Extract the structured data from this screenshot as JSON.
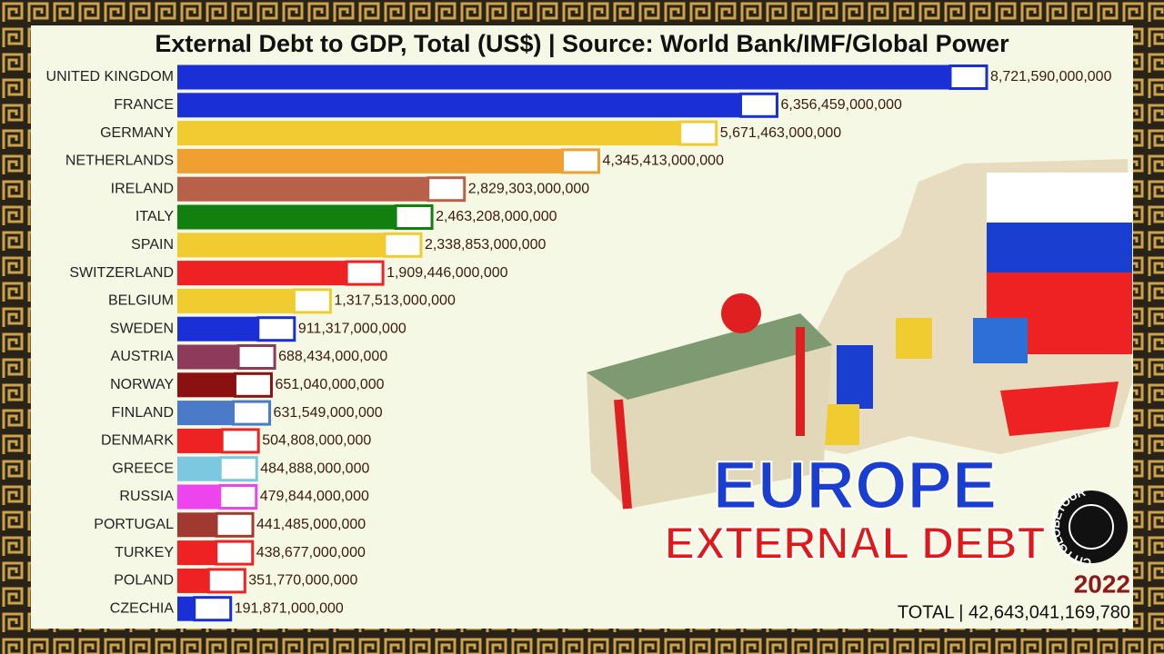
{
  "chart_data": {
    "type": "hbar",
    "title": "External Debt to GDP, Total (US$) | Source: World Bank/IMF/Global Power",
    "categories": [
      "UNITED KINGDOM",
      "FRANCE",
      "GERMANY",
      "NETHERLANDS",
      "IRELAND",
      "ITALY",
      "SPAIN",
      "SWITZERLAND",
      "BELGIUM",
      "SWEDEN",
      "AUSTRIA",
      "NORWAY",
      "FINLAND",
      "DENMARK",
      "GREECE",
      "RUSSIA",
      "PORTUGAL",
      "TURKEY",
      "POLAND",
      "CZECHIA"
    ],
    "values": [
      8721590000000,
      6356459000000,
      5671463000000,
      4345413000000,
      2829303000000,
      2463208000000,
      2338853000000,
      1909446000000,
      1317513000000,
      911317000000,
      688434000000,
      651040000000,
      631549000000,
      504808000000,
      484888000000,
      479844000000,
      441485000000,
      438677000000,
      351770000000,
      191871000000
    ],
    "value_labels": [
      "8,721,590,000,000",
      "6,356,459,000,000",
      "5,671,463,000,000",
      "4,345,413,000,000",
      "2,829,303,000,000",
      "2,463,208,000,000",
      "2,338,853,000,000",
      "1,909,446,000,000",
      "1,317,513,000,000",
      "911,317,000,000",
      "688,434,000,000",
      "651,040,000,000",
      "631,549,000,000",
      "504,808,000,000",
      "484,888,000,000",
      "479,844,000,000",
      "441,485,000,000",
      "438,677,000,000",
      "351,770,000,000",
      "191,871,000,000"
    ],
    "colors": [
      "#1a2fd6",
      "#1a2fd6",
      "#f0cc30",
      "#f0a030",
      "#b8614a",
      "#12800f",
      "#f0cc30",
      "#ee2222",
      "#f0cc30",
      "#1a2fd6",
      "#8e3a5a",
      "#8b1010",
      "#4a7ac8",
      "#ee2222",
      "#7cc8e0",
      "#ee44ee",
      "#a03a30",
      "#ee2222",
      "#ee2222",
      "#1a2fd6"
    ],
    "headline": "EUROPE",
    "subheadline": "EXTERNAL DEBT",
    "year": "2022",
    "total": "TOTAL | 42,643,041,169,780",
    "logo": "CITYGLOBETOUR"
  }
}
